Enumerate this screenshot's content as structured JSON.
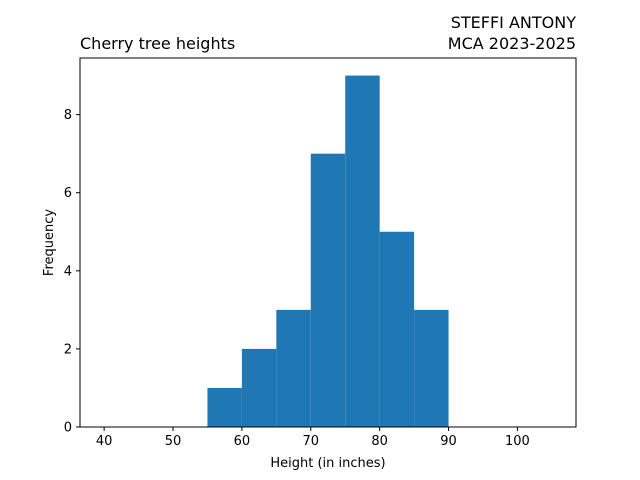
{
  "chart_data": {
    "type": "bar",
    "title": "Cherry tree heights",
    "title_right": [
      "STEFFI ANTONY",
      "MCA 2023-2025"
    ],
    "xlabel": "Height (in inches)",
    "ylabel": "Frequency",
    "xlim": [
      36.5,
      108.5
    ],
    "ylim": [
      0,
      9.45
    ],
    "x_ticks": [
      40,
      50,
      60,
      70,
      80,
      90,
      100
    ],
    "y_ticks": [
      0,
      2,
      4,
      6,
      8
    ],
    "bins": [
      {
        "x0": 55,
        "x1": 60,
        "value": 1
      },
      {
        "x0": 60,
        "x1": 65,
        "value": 2
      },
      {
        "x0": 65,
        "x1": 70,
        "value": 3
      },
      {
        "x0": 70,
        "x1": 75,
        "value": 7
      },
      {
        "x0": 75,
        "x1": 80,
        "value": 9
      },
      {
        "x0": 80,
        "x1": 85,
        "value": 5
      },
      {
        "x0": 85,
        "x1": 90,
        "value": 3
      }
    ],
    "bar_color": "#1f77b4",
    "grid": false,
    "legend": "none"
  }
}
